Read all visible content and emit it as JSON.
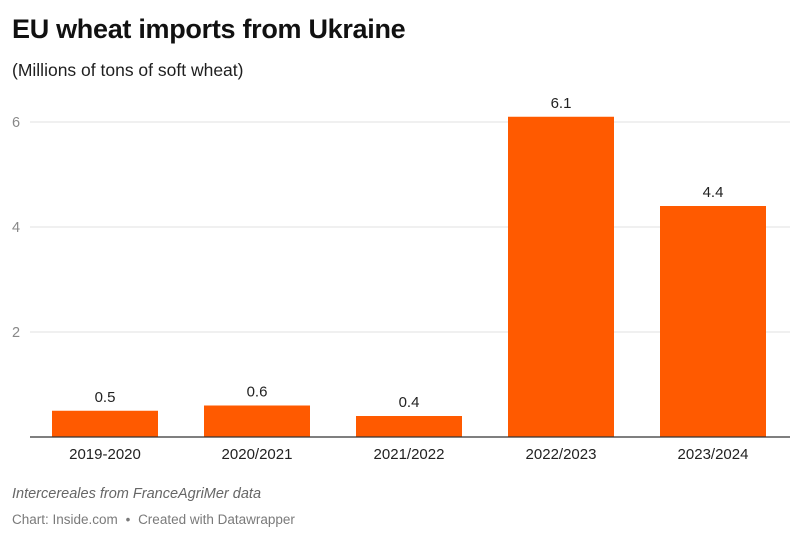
{
  "header": {
    "title": "EU wheat imports from Ukraine",
    "subtitle": "(Millions of tons of soft wheat)"
  },
  "footer": {
    "source": "Intercereales from FranceAgriMer data",
    "chart_credit": "Chart: Inside.com",
    "separator": "•",
    "created_with": "Created with Datawrapper"
  },
  "colors": {
    "bar": "#ff5a00",
    "grid": "#e2e2e2",
    "axis": "#333333",
    "tick_label": "#888888"
  },
  "chart_data": {
    "type": "bar",
    "title": "EU wheat imports from Ukraine",
    "subtitle": "(Millions of tons of soft wheat)",
    "categories": [
      "2019-2020",
      "2020/2021",
      "2021/2022",
      "2022/2023",
      "2023/2024"
    ],
    "values": [
      0.5,
      0.6,
      0.4,
      6.1,
      4.4
    ],
    "data_labels": [
      "0.5",
      "0.6",
      "0.4",
      "6.1",
      "4.4"
    ],
    "y_ticks": [
      2,
      4,
      6
    ],
    "ylim": [
      0,
      6.1
    ],
    "grid": true,
    "legend": "none",
    "xlabel": "",
    "ylabel": ""
  }
}
